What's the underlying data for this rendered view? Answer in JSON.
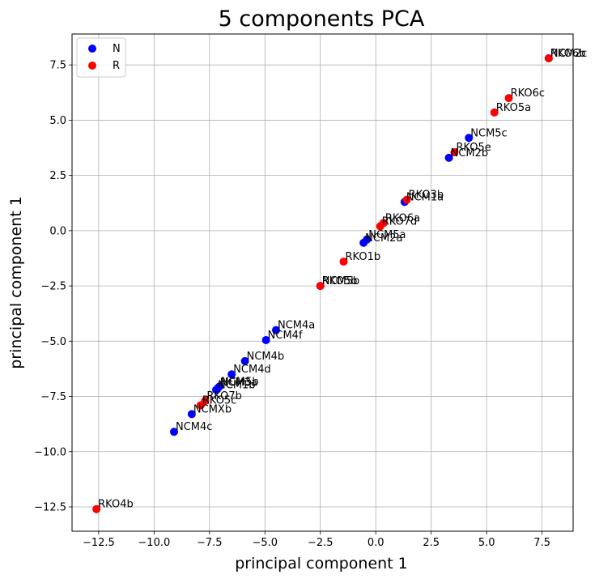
{
  "chart_data": {
    "type": "scatter",
    "title": "5 components PCA",
    "xlabel": "principal component 1",
    "ylabel": "principal component 1",
    "xlim": [
      -13.7,
      8.9
    ],
    "ylim": [
      -13.6,
      8.9
    ],
    "xticks": [
      -12.5,
      -10.0,
      -7.5,
      -5.0,
      -2.5,
      0.0,
      2.5,
      5.0,
      7.5
    ],
    "xtick_labels": [
      "−12.5",
      "−10.0",
      "−7.5",
      "−5.0",
      "−2.5",
      "0.0",
      "2.5",
      "5.0",
      "7.5"
    ],
    "yticks": [
      -12.5,
      -10.0,
      -7.5,
      -5.0,
      -2.5,
      0.0,
      2.5,
      5.0,
      7.5
    ],
    "ytick_labels": [
      "−12.5",
      "−10.0",
      "−7.5",
      "−5.0",
      "−2.5",
      "0.0",
      "2.5",
      "5.0",
      "7.5"
    ],
    "grid": true,
    "legend_position": "top-left",
    "series": [
      {
        "name": "N",
        "color": "#0000ff",
        "points": [
          {
            "label": "NCM5c",
            "x": 4.2,
            "y": 4.2
          },
          {
            "label": "NCM2b",
            "x": 3.3,
            "y": 3.3
          },
          {
            "label": "NCM1a",
            "x": 1.3,
            "y": 1.3
          },
          {
            "label": "NCM5a",
            "x": -0.4,
            "y": -0.4
          },
          {
            "label": "NCM2a",
            "x": -0.55,
            "y": -0.55
          },
          {
            "label": "NCM5b",
            "x": -2.5,
            "y": -2.5
          },
          {
            "label": "NCM4a",
            "x": -4.5,
            "y": -4.5
          },
          {
            "label": "NCM4f",
            "x": -4.95,
            "y": -4.95
          },
          {
            "label": "NCM4b",
            "x": -5.9,
            "y": -5.9
          },
          {
            "label": "NCM4d",
            "x": -6.5,
            "y": -6.5
          },
          {
            "label": "NCM5b",
            "x": -7.05,
            "y": -7.05
          },
          {
            "label": "NCM3a",
            "x": -7.1,
            "y": -7.1
          },
          {
            "label": "NCM1b",
            "x": -7.2,
            "y": -7.2
          },
          {
            "label": "NCMXb",
            "x": -8.3,
            "y": -8.3
          },
          {
            "label": "NCM4c",
            "x": -9.1,
            "y": -9.1
          },
          {
            "label": "NCM2c",
            "x": 7.8,
            "y": 7.8
          }
        ]
      },
      {
        "name": "R",
        "color": "#ff0000",
        "points": [
          {
            "label": "RKO6b",
            "x": 7.8,
            "y": 7.8
          },
          {
            "label": "RKO6c",
            "x": 6.0,
            "y": 6.0
          },
          {
            "label": "RKO5a",
            "x": 5.35,
            "y": 5.35
          },
          {
            "label": "RKO5e",
            "x": 3.55,
            "y": 3.55
          },
          {
            "label": "RKO3b",
            "x": 1.4,
            "y": 1.4
          },
          {
            "label": "RKO6a",
            "x": 0.35,
            "y": 0.35
          },
          {
            "label": "RKO7d",
            "x": 0.2,
            "y": 0.2
          },
          {
            "label": "RKO1b",
            "x": -1.45,
            "y": -1.4
          },
          {
            "label": "RKO5b",
            "x": -2.5,
            "y": -2.5
          },
          {
            "label": "RKO7b",
            "x": -7.7,
            "y": -7.7
          },
          {
            "label": "RKO5c",
            "x": -7.9,
            "y": -7.9
          },
          {
            "label": "RKO4b",
            "x": -12.6,
            "y": -12.6
          }
        ]
      }
    ]
  }
}
